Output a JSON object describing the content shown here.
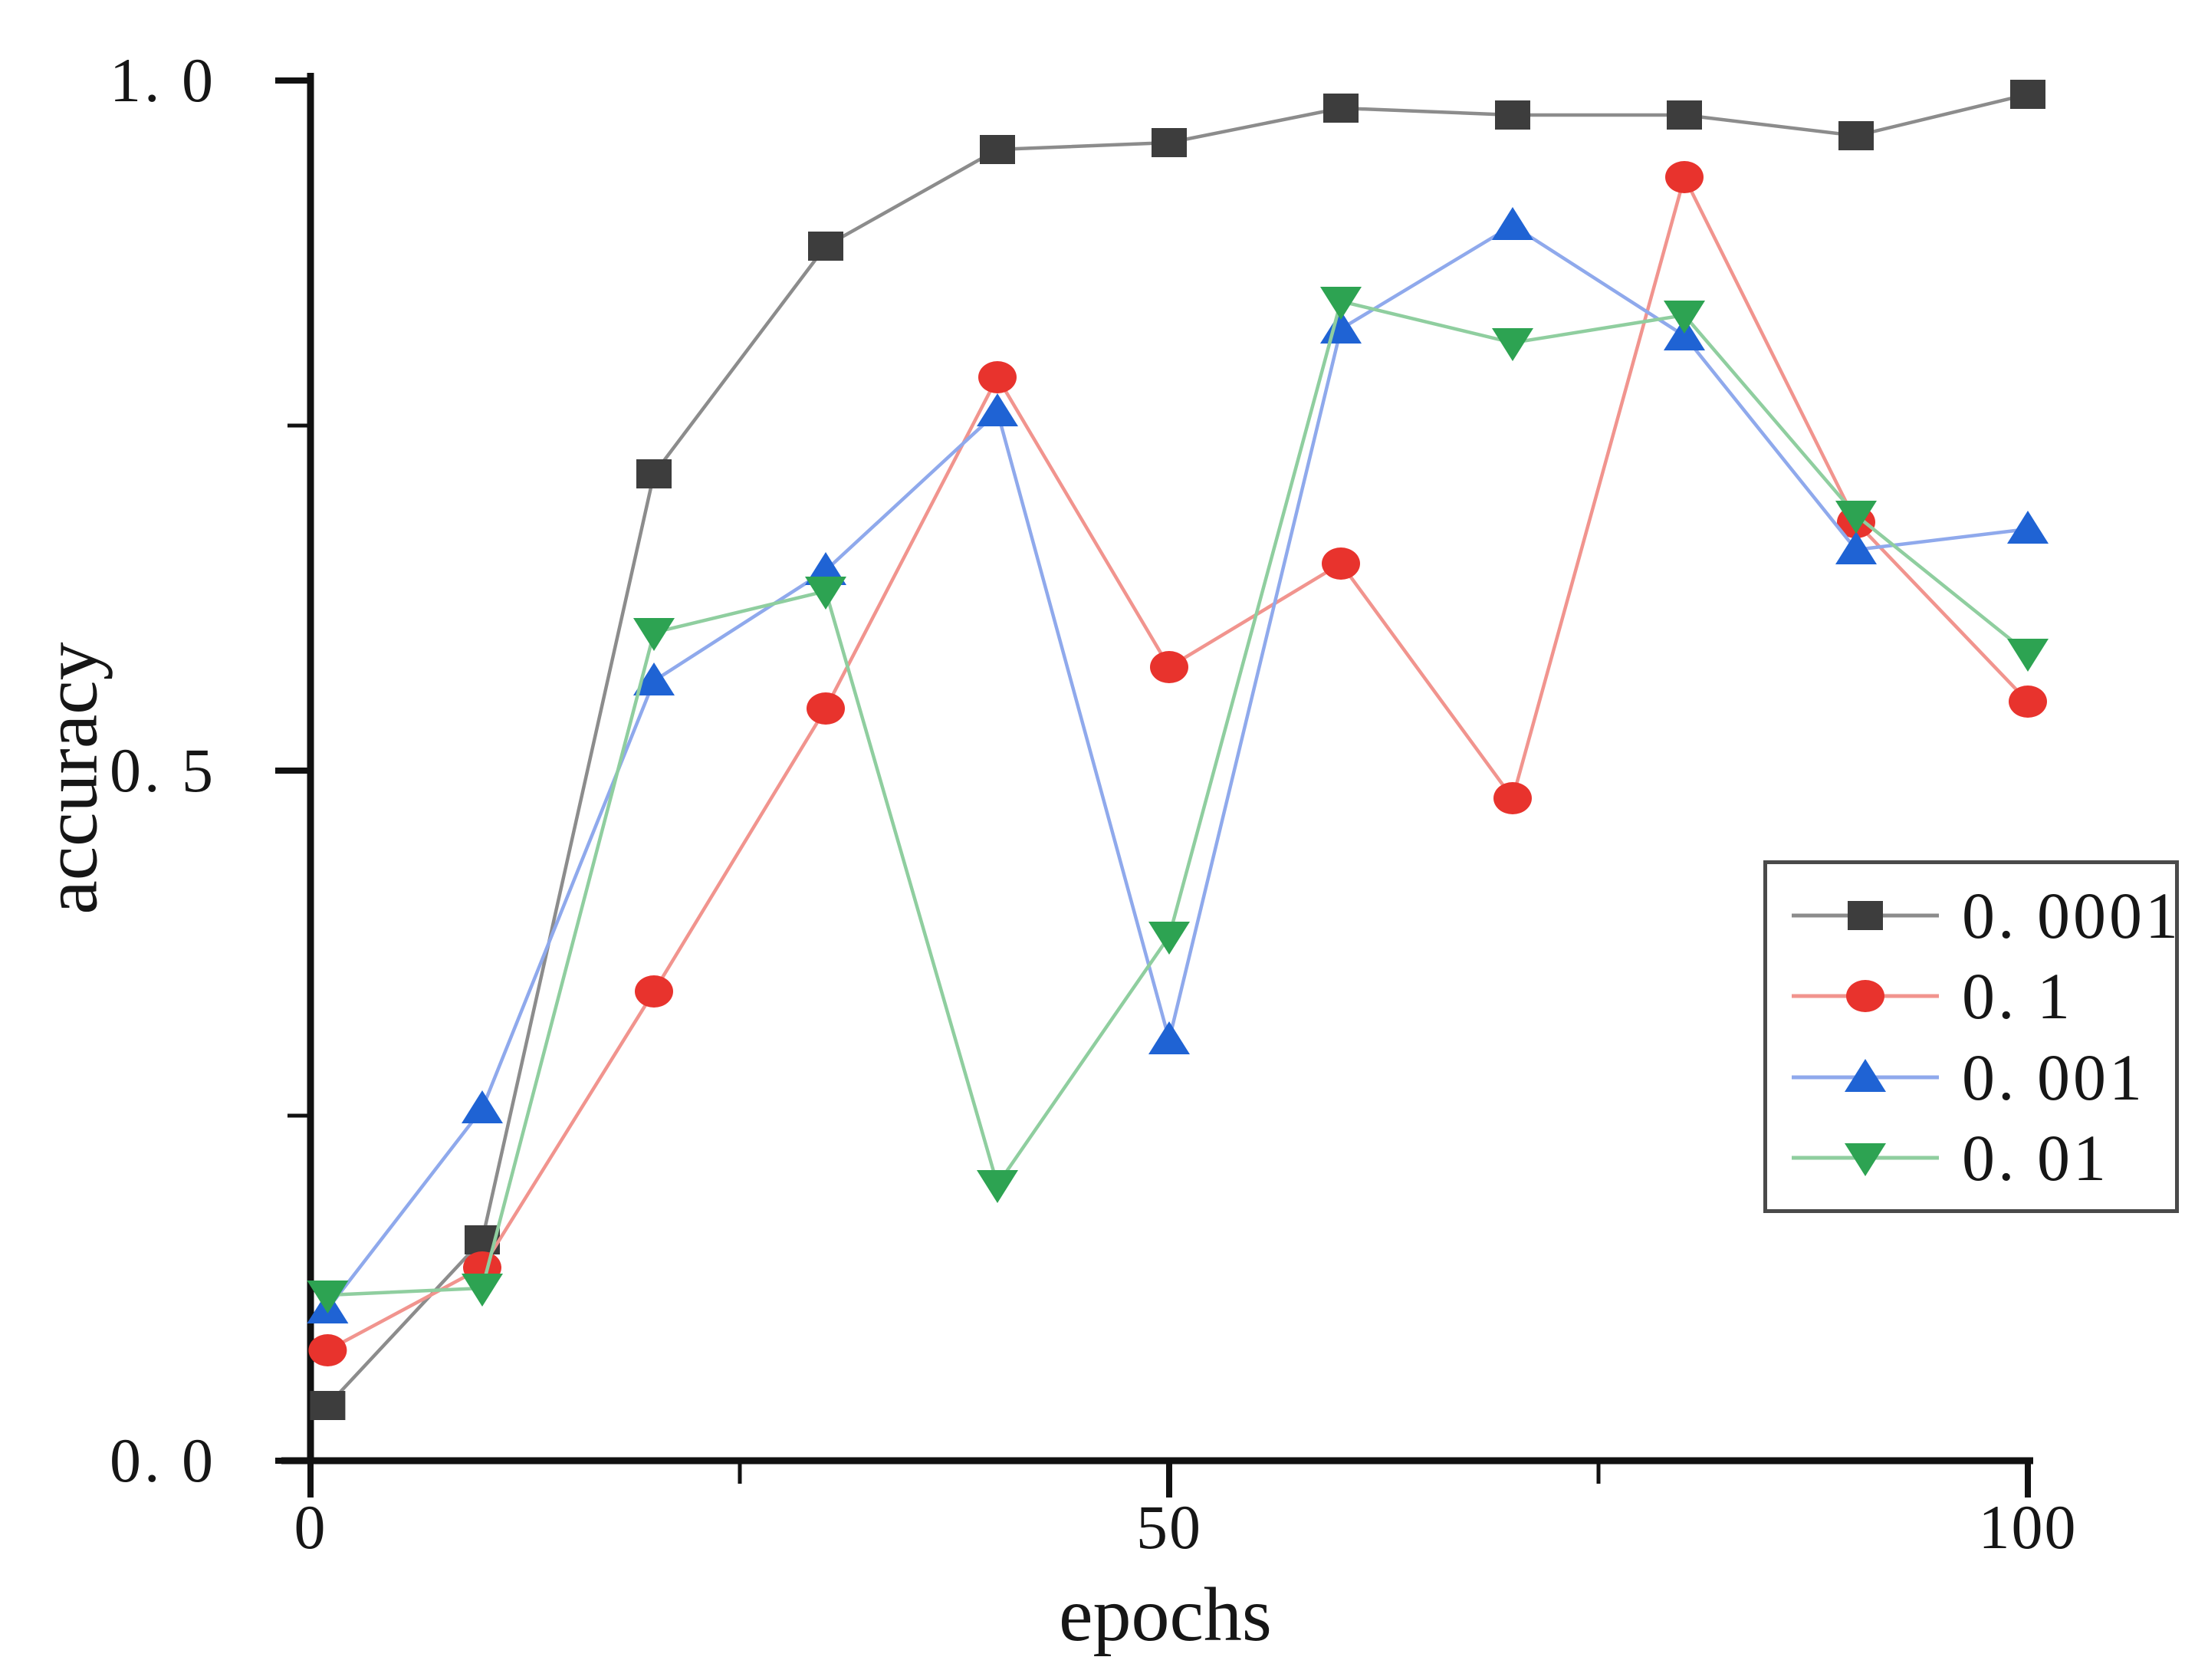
{
  "figure": {
    "ylabel": "accuracy",
    "xlabel": "epochs",
    "y_tick_labels": [
      "1. 0",
      "0. 5",
      "0. 0"
    ],
    "x_tick_labels": [
      "0",
      "50",
      "100"
    ]
  },
  "chart_data": {
    "type": "line",
    "title": "",
    "xlabel": "epochs",
    "ylabel": "accuracy",
    "xlim": [
      0,
      100
    ],
    "ylim": [
      0.0,
      1.0
    ],
    "x_ticks_major": [
      0,
      50,
      100
    ],
    "x_ticks_minor": [
      25,
      75
    ],
    "y_ticks_major": [
      0.0,
      0.5,
      1.0
    ],
    "y_ticks_minor": [
      0.25,
      0.75
    ],
    "grid": false,
    "legend_position": "center-right",
    "x": [
      1,
      10,
      20,
      30,
      40,
      50,
      60,
      70,
      80,
      90,
      100
    ],
    "series": [
      {
        "name": "0. 0001",
        "marker": "square",
        "marker_color": "#3d3d3d",
        "line_color": "#8c8c8c",
        "values": [
          0.04,
          0.16,
          0.715,
          0.88,
          0.95,
          0.955,
          0.98,
          0.975,
          0.975,
          0.96,
          0.99
        ]
      },
      {
        "name": "0. 1",
        "marker": "circle",
        "marker_color": "#e8332d",
        "line_color": "#f1948e",
        "values": [
          0.08,
          0.14,
          0.34,
          0.545,
          0.785,
          0.575,
          0.65,
          0.48,
          0.93,
          0.68,
          0.55
        ]
      },
      {
        "name": "0. 001",
        "marker": "triangle-up",
        "marker_color": "#1f63d4",
        "line_color": "#8fa9ec",
        "values": [
          0.11,
          0.255,
          0.565,
          0.645,
          0.76,
          0.305,
          0.82,
          0.895,
          0.815,
          0.66,
          0.675
        ]
      },
      {
        "name": "0. 01",
        "marker": "triangle-down",
        "marker_color": "#2da352",
        "line_color": "#8fce9f",
        "values": [
          0.12,
          0.125,
          0.6,
          0.63,
          0.2,
          0.38,
          0.84,
          0.81,
          0.83,
          0.685,
          0.585
        ]
      }
    ]
  }
}
